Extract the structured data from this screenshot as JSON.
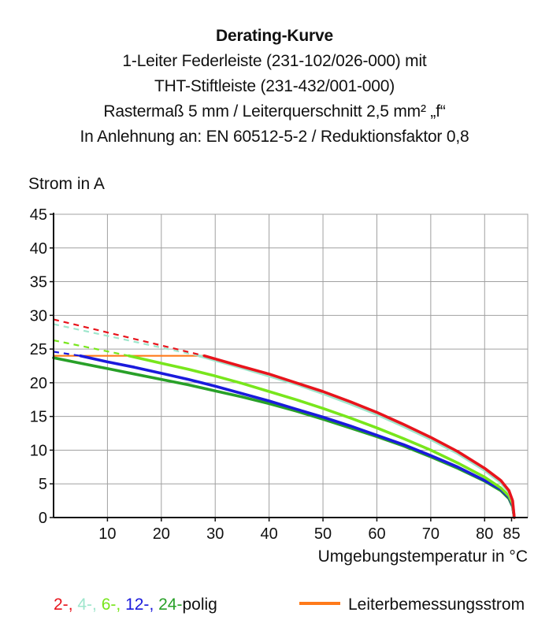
{
  "title": {
    "lines": [
      "Derating-Kurve",
      "1-Leiter Federleiste (231-102/026-000) mit",
      "THT-Stiftleiste (231-432/001-000)",
      "Rastermaß 5 mm / Leiterquerschnitt 2,5 mm² „f“",
      "In Anlehnung an: EN 60512-5-2 / Reduktionsfaktor 0,8"
    ]
  },
  "legend": {
    "poles": [
      {
        "text": "2-",
        "color": "#e8141c"
      },
      {
        "text": ", ",
        "color": "#e8141c"
      },
      {
        "text": "4-",
        "color": "#9ee6cc"
      },
      {
        "text": ", ",
        "color": "#9ee6cc"
      },
      {
        "text": "6-",
        "color": "#78e61c"
      },
      {
        "text": ", ",
        "color": "#78e61c"
      },
      {
        "text": "12-",
        "color": "#1a1adc"
      },
      {
        "text": ", ",
        "color": "#1a1adc"
      },
      {
        "text": "24-",
        "color": "#28a028"
      },
      {
        "text": "polig",
        "color": "#111111"
      }
    ],
    "rated_label": "Leiterbemessungsstrom",
    "rated_color": "#ff7a1a"
  },
  "chart_data": {
    "type": "line",
    "xlabel": "Umgebungstemperatur in °C",
    "ylabel": "Strom in A",
    "xlim": [
      0,
      88
    ],
    "ylim": [
      0,
      45
    ],
    "x_ticks": [
      10,
      20,
      30,
      40,
      50,
      60,
      70,
      80,
      85
    ],
    "y_ticks": [
      0,
      5,
      10,
      15,
      20,
      25,
      30,
      35,
      40,
      45
    ],
    "grid": true,
    "series": [
      {
        "name": "2-polig",
        "color": "#e8141c",
        "dashed": [
          [
            0,
            29.4
          ],
          [
            28,
            24.0
          ]
        ],
        "solid": [
          [
            28,
            24.0
          ],
          [
            35,
            22.4
          ],
          [
            40,
            21.3
          ],
          [
            45,
            20.0
          ],
          [
            50,
            18.7
          ],
          [
            55,
            17.2
          ],
          [
            60,
            15.6
          ],
          [
            65,
            13.8
          ],
          [
            70,
            11.9
          ],
          [
            75,
            9.8
          ],
          [
            80,
            7.3
          ],
          [
            83,
            5.5
          ],
          [
            84.5,
            4.0
          ],
          [
            85.2,
            2.5
          ],
          [
            85.5,
            0
          ]
        ]
      },
      {
        "name": "4-polig",
        "color": "#9ee6cc",
        "dashed": [
          [
            0,
            28.7
          ],
          [
            27,
            24.0
          ]
        ],
        "solid": [
          [
            27,
            24.0
          ],
          [
            35,
            22.2
          ],
          [
            40,
            21.0
          ],
          [
            45,
            19.8
          ],
          [
            50,
            18.4
          ],
          [
            55,
            16.9
          ],
          [
            60,
            15.3
          ],
          [
            65,
            13.5
          ],
          [
            70,
            11.6
          ],
          [
            75,
            9.5
          ],
          [
            80,
            7.0
          ],
          [
            83,
            5.2
          ],
          [
            84.5,
            3.8
          ],
          [
            85.2,
            2.4
          ],
          [
            85.5,
            0
          ]
        ]
      },
      {
        "name": "6-polig",
        "color": "#78e61c",
        "dashed": [
          [
            0,
            26.3
          ],
          [
            14,
            24.0
          ]
        ],
        "solid": [
          [
            14,
            24.0
          ],
          [
            20,
            22.9
          ],
          [
            25,
            22.0
          ],
          [
            30,
            21.0
          ],
          [
            35,
            19.9
          ],
          [
            40,
            18.7
          ],
          [
            45,
            17.5
          ],
          [
            50,
            16.2
          ],
          [
            55,
            14.8
          ],
          [
            60,
            13.3
          ],
          [
            65,
            11.7
          ],
          [
            70,
            10.0
          ],
          [
            75,
            8.1
          ],
          [
            80,
            6.0
          ],
          [
            83,
            4.4
          ],
          [
            84.5,
            3.2
          ],
          [
            85.2,
            2.0
          ],
          [
            85.5,
            0
          ]
        ]
      },
      {
        "name": "12-polig",
        "color": "#1a1adc",
        "dashed": [
          [
            0,
            24.6
          ],
          [
            5,
            24.0
          ]
        ],
        "solid": [
          [
            5,
            24.0
          ],
          [
            10,
            23.1
          ],
          [
            15,
            22.3
          ],
          [
            20,
            21.4
          ],
          [
            25,
            20.5
          ],
          [
            30,
            19.5
          ],
          [
            35,
            18.4
          ],
          [
            40,
            17.3
          ],
          [
            45,
            16.1
          ],
          [
            50,
            14.9
          ],
          [
            55,
            13.6
          ],
          [
            60,
            12.2
          ],
          [
            65,
            10.8
          ],
          [
            70,
            9.2
          ],
          [
            75,
            7.5
          ],
          [
            80,
            5.5
          ],
          [
            83,
            4.2
          ],
          [
            84.5,
            3.0
          ],
          [
            85.2,
            1.8
          ],
          [
            85.5,
            0
          ]
        ]
      },
      {
        "name": "24-polig",
        "color": "#28a028",
        "dashed": [],
        "solid": [
          [
            0,
            23.7
          ],
          [
            5,
            22.9
          ],
          [
            10,
            22.1
          ],
          [
            15,
            21.3
          ],
          [
            20,
            20.5
          ],
          [
            25,
            19.7
          ],
          [
            30,
            18.8
          ],
          [
            35,
            17.9
          ],
          [
            40,
            16.9
          ],
          [
            45,
            15.8
          ],
          [
            50,
            14.6
          ],
          [
            55,
            13.3
          ],
          [
            60,
            12.0
          ],
          [
            65,
            10.6
          ],
          [
            70,
            9.0
          ],
          [
            75,
            7.3
          ],
          [
            80,
            5.4
          ],
          [
            83,
            4.0
          ],
          [
            84.5,
            2.8
          ],
          [
            85.2,
            1.6
          ],
          [
            85.5,
            0
          ]
        ]
      },
      {
        "name": "Leiterbemessungsstrom",
        "color": "#ff7a1a",
        "dashed": [],
        "solid": [
          [
            0,
            24.0
          ],
          [
            28,
            24.0
          ]
        ]
      }
    ]
  }
}
